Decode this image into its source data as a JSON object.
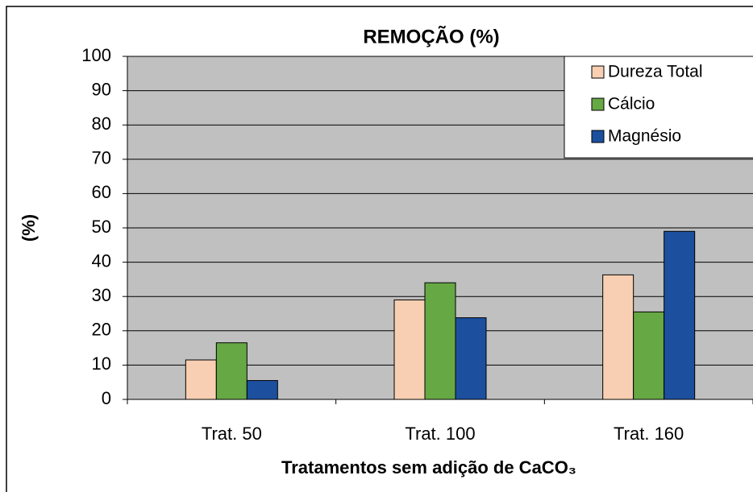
{
  "chart_data": {
    "type": "bar",
    "title": "REMOÇÃO (%)",
    "x_label": "Tratamentos sem adição de CaCO₃",
    "y_label": "(%)",
    "categories": [
      "Trat. 50",
      "Trat. 100",
      "Trat. 160"
    ],
    "series": [
      {
        "name": "Dureza Total",
        "color": "#f8cfb2",
        "values": [
          11.5,
          29,
          36.3
        ]
      },
      {
        "name": "Cálcio",
        "color": "#66a844",
        "values": [
          16.5,
          34,
          25.5
        ]
      },
      {
        "name": "Magnésio",
        "color": "#1c4f9e",
        "values": [
          5.5,
          23.8,
          49
        ]
      }
    ],
    "ylim": [
      0,
      100
    ],
    "yticks": [
      0,
      10,
      20,
      30,
      40,
      50,
      60,
      70,
      80,
      90,
      100
    ],
    "grid": true,
    "legend": "upper right"
  }
}
